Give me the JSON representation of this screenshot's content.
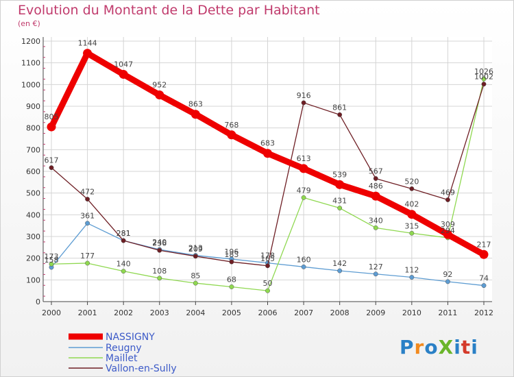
{
  "title": "Evolution du Montant de la Dette par Habitant",
  "unit": "(en €)",
  "logo": {
    "text": "ProXiti",
    "colors": [
      "#2a80c6",
      "#f28a1e",
      "#2a80c6",
      "#6ab52a",
      "#2a80c6",
      "#d43a2a",
      "#2a80c6"
    ]
  },
  "chart_data": {
    "type": "line",
    "x": [
      "2000",
      "2001",
      "2002",
      "2003",
      "2004",
      "2005",
      "2006",
      "2007",
      "2008",
      "2009",
      "2010",
      "2011",
      "2012"
    ],
    "ylim": [
      0,
      1200
    ],
    "yticks": [
      0,
      100,
      200,
      300,
      400,
      500,
      600,
      700,
      800,
      900,
      1000,
      1100,
      1200
    ],
    "grid": true,
    "legend_position": "bottom-left",
    "series": [
      {
        "name": "NASSIGNY",
        "color": "#ee0000",
        "values": [
          805,
          1144,
          1047,
          952,
          863,
          768,
          683,
          613,
          539,
          486,
          402,
          309,
          217
        ]
      },
      {
        "name": "Reugny",
        "color": "#5d9cd2",
        "values": [
          158,
          361,
          281,
          240,
          213,
          196,
          178,
          160,
          142,
          127,
          112,
          92,
          74
        ]
      },
      {
        "name": "Maillet",
        "color": "#8fd850",
        "values": [
          173,
          177,
          140,
          108,
          85,
          68,
          50,
          479,
          431,
          340,
          315,
          294,
          1026
        ]
      },
      {
        "name": "Vallon-en-Sully",
        "color": "#6e1e24",
        "values": [
          617,
          472,
          281,
          236,
          209,
          183,
          165,
          916,
          861,
          567,
          520,
          469,
          1002
        ]
      }
    ]
  }
}
